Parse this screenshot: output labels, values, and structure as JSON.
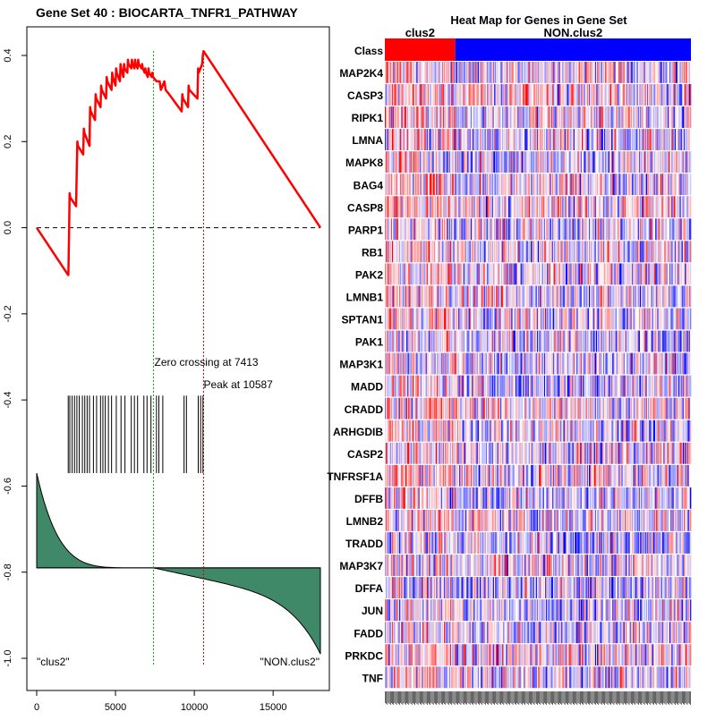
{
  "chart_data": [
    {
      "type": "line",
      "name": "gsea-enrichment-plot",
      "title": "Gene Set  40 : BIOCARTA_TNFR1_PATHWAY",
      "xlim": [
        0,
        18000
      ],
      "ylim": [
        -1.0,
        0.45
      ],
      "xticks": [
        0,
        5000,
        10000,
        15000
      ],
      "xtick_labels": [
        "0",
        "5000",
        "10000",
        "15000"
      ],
      "yticks": [
        0.4,
        0.2,
        0.0,
        -0.2,
        -0.4,
        -0.6,
        -0.8,
        -1.0
      ],
      "ytick_labels": [
        "0.4",
        "0.2",
        "0.0",
        "-0.2",
        "-0.4",
        "-0.6",
        "-0.8",
        "-1.0"
      ],
      "enrichment_series": {
        "name": "running enrichment score",
        "color": "#ff0000",
        "x": [
          0,
          2000,
          2010,
          2050,
          2090,
          2130,
          2500,
          2540,
          2580,
          2620,
          2950,
          2990,
          3030,
          3350,
          3390,
          3430,
          3700,
          3740,
          3780,
          4050,
          4090,
          4130,
          4400,
          4440,
          4480,
          4750,
          4790,
          4830,
          5000,
          5040,
          5080,
          5280,
          5320,
          5360,
          5500,
          5540,
          5580,
          5750,
          5790,
          5830,
          6000,
          6040,
          6080,
          6200,
          6240,
          6280,
          6400,
          6440,
          6480,
          6650,
          6690,
          6730,
          6850,
          6890,
          6930,
          7050,
          7090,
          7130,
          7300,
          7340,
          7380,
          7600,
          7800,
          7840,
          7880,
          8100,
          8140,
          8180,
          8400,
          8600,
          8800,
          9000,
          9200,
          9240,
          9280,
          9600,
          9640,
          9680,
          10200,
          10240,
          10280,
          10500,
          10540,
          10587,
          18000
        ],
        "y": [
          0.0,
          -0.11,
          -0.11,
          -0.02,
          0.08,
          0.07,
          0.05,
          0.13,
          0.2,
          0.19,
          0.17,
          0.23,
          0.22,
          0.19,
          0.28,
          0.27,
          0.25,
          0.31,
          0.3,
          0.28,
          0.33,
          0.32,
          0.3,
          0.35,
          0.34,
          0.32,
          0.36,
          0.35,
          0.33,
          0.37,
          0.36,
          0.34,
          0.38,
          0.37,
          0.35,
          0.38,
          0.37,
          0.36,
          0.39,
          0.38,
          0.37,
          0.39,
          0.38,
          0.37,
          0.39,
          0.38,
          0.37,
          0.39,
          0.38,
          0.37,
          0.38,
          0.37,
          0.36,
          0.37,
          0.36,
          0.35,
          0.37,
          0.36,
          0.35,
          0.36,
          0.35,
          0.34,
          0.34,
          0.33,
          0.32,
          0.34,
          0.33,
          0.32,
          0.31,
          0.3,
          0.29,
          0.28,
          0.27,
          0.31,
          0.3,
          0.28,
          0.33,
          0.32,
          0.3,
          0.37,
          0.36,
          0.38,
          0.4,
          0.41,
          0.0
        ]
      },
      "baseline": {
        "y": 0.0,
        "style": "dashed"
      },
      "zero_crossing": {
        "x": 7413,
        "label": "Zero crossing at 7413",
        "color": "#00aa00"
      },
      "peak": {
        "x": 10587,
        "label": "Peak at 10587",
        "color": "#cc0000"
      },
      "hit_positions": [
        2000,
        2100,
        2250,
        2400,
        2550,
        2700,
        2900,
        3050,
        3200,
        3350,
        3600,
        3800,
        4050,
        4200,
        4350,
        4550,
        4750,
        5050,
        5350,
        5600,
        6000,
        6200,
        6400,
        6800,
        7000,
        7250,
        7600,
        7750,
        8000,
        9350,
        9500,
        10250,
        10400,
        10550
      ],
      "hit_y_range": [
        -0.39,
        -0.57
      ],
      "ranked_metric": {
        "baseline_y": -0.79,
        "start_y": -0.57,
        "end_y": -0.99,
        "crossing_x": 7413,
        "fill": "#3f8868"
      },
      "annotations": [
        "\"clus2\"",
        "\"NON.clus2\""
      ]
    },
    {
      "type": "heatmap",
      "name": "gene-set-heatmap",
      "title": "Heat Map for Genes in Gene Set",
      "class_row_label": "Class",
      "groups": [
        {
          "name": "clus2",
          "fraction": 0.23,
          "color": "#ff0000"
        },
        {
          "name": "NON.clus2",
          "fraction": 0.77,
          "color": "#0000ff"
        }
      ],
      "genes": [
        "MAP2K4",
        "CASP3",
        "RIPK1",
        "LMNA",
        "MAPK8",
        "BAG4",
        "CASP8",
        "PARP1",
        "RB1",
        "PAK2",
        "LMNB1",
        "SPTAN1",
        "PAK1",
        "MAP3K1",
        "MADD",
        "CRADD",
        "ARHGDIB",
        "CASP2",
        "TNFRSF1A",
        "DFFB",
        "LMNB2",
        "TRADD",
        "MAP3K7",
        "DFFA",
        "JUN",
        "FADD",
        "PRKDC",
        "TNF"
      ],
      "columns": 300,
      "colors": {
        "high": "#ff0000",
        "low": "#0000ff",
        "mid": "#ffffff"
      }
    }
  ]
}
